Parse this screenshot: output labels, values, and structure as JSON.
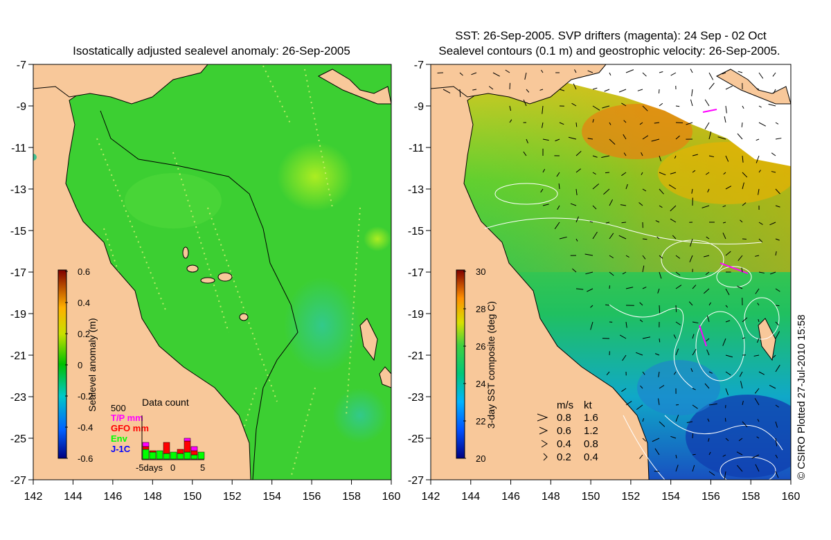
{
  "left_panel": {
    "title": "Isostatically adjusted sealevel anomaly: 26-Sep-2005",
    "colorbar_label": "Sealevel anomaly (m)",
    "colorbar_ticks": [
      "0.6",
      "0.4",
      "0.2",
      "0",
      "-0.2",
      "-0.4",
      "-0.6"
    ],
    "data_count": {
      "title": "Data count",
      "scale_label": "500",
      "legend": [
        {
          "label": "T/P mm",
          "color": "#ff00ff"
        },
        {
          "label": "GFO mm",
          "color": "#ff0000"
        },
        {
          "label": "Env",
          "color": "#00ff00"
        },
        {
          "label": "J-1C",
          "color": "#0000ff"
        }
      ],
      "x_ticks": [
        "-5days",
        "0",
        "5"
      ]
    }
  },
  "right_panel": {
    "title_line1": "SST: 26-Sep-2005. SVP drifters (magenta): 24 Sep - 02 Oct",
    "title_line2": "Sealevel contours (0.1 m) and geostrophic velocity: 26-Sep-2005.",
    "colorbar_label": "3-day SST composite (deg C)",
    "colorbar_ticks": [
      "30",
      "28",
      "26",
      "24",
      "22",
      "20"
    ],
    "velocity_key": {
      "header_ms": "m/s",
      "header_kt": "kt",
      "rows": [
        {
          "ms": "0.8",
          "kt": "1.6"
        },
        {
          "ms": "0.6",
          "kt": "1.2"
        },
        {
          "ms": "0.4",
          "kt": "0.8"
        },
        {
          "ms": "0.2",
          "kt": "0.4"
        }
      ]
    }
  },
  "axes": {
    "x_ticks": [
      "142",
      "144",
      "146",
      "148",
      "150",
      "152",
      "154",
      "156",
      "158",
      "160"
    ],
    "y_ticks": [
      "-7",
      "-9",
      "-11",
      "-13",
      "-15",
      "-17",
      "-19",
      "-21",
      "-23",
      "-25",
      "-27"
    ]
  },
  "credit": "© CSIRO Plotted 27-Jul-2010 15:58",
  "colors": {
    "land": "#f8c89a",
    "ocean_green": "#33cc33",
    "sst_blue": "#2060c8",
    "sst_yellow": "#e8c020"
  }
}
